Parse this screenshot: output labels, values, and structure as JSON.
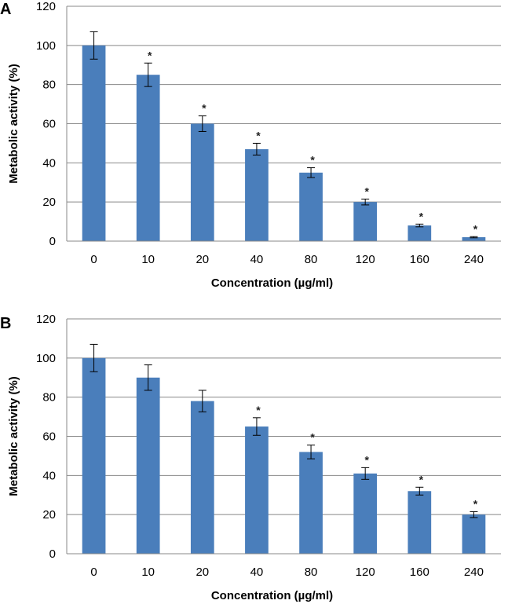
{
  "chart_data": [
    {
      "panel": "A",
      "type": "bar",
      "xlabel": "Concentration (µg/ml)",
      "ylabel": "Metabolic activity (%)",
      "ylim": [
        0,
        120
      ],
      "yticks": [
        0,
        20,
        40,
        60,
        80,
        100,
        120
      ],
      "categories": [
        "0",
        "10",
        "20",
        "40",
        "80",
        "120",
        "160",
        "240"
      ],
      "values": [
        100,
        85,
        60,
        47,
        35,
        20,
        8,
        2
      ],
      "errors": [
        7,
        6,
        4,
        3,
        2.5,
        1.5,
        0.7,
        0.3
      ],
      "significant": [
        false,
        true,
        true,
        true,
        true,
        true,
        true,
        true
      ],
      "marker": "*",
      "bar_color": "#4a7ebb",
      "grid": true
    },
    {
      "panel": "B",
      "type": "bar",
      "xlabel": "Concentration (µg/ml)",
      "ylabel": "Metabolic activity (%)",
      "ylim": [
        0,
        120
      ],
      "yticks": [
        0,
        20,
        40,
        60,
        80,
        100,
        120
      ],
      "categories": [
        "0",
        "10",
        "20",
        "40",
        "80",
        "120",
        "160",
        "240"
      ],
      "values": [
        100,
        90,
        78,
        65,
        52,
        41,
        32,
        20
      ],
      "errors": [
        7,
        6.5,
        5.5,
        4.5,
        3.5,
        3,
        2,
        1.5
      ],
      "significant": [
        false,
        false,
        false,
        true,
        true,
        true,
        true,
        true
      ],
      "marker": "*",
      "bar_color": "#4a7ebb",
      "grid": true
    }
  ]
}
